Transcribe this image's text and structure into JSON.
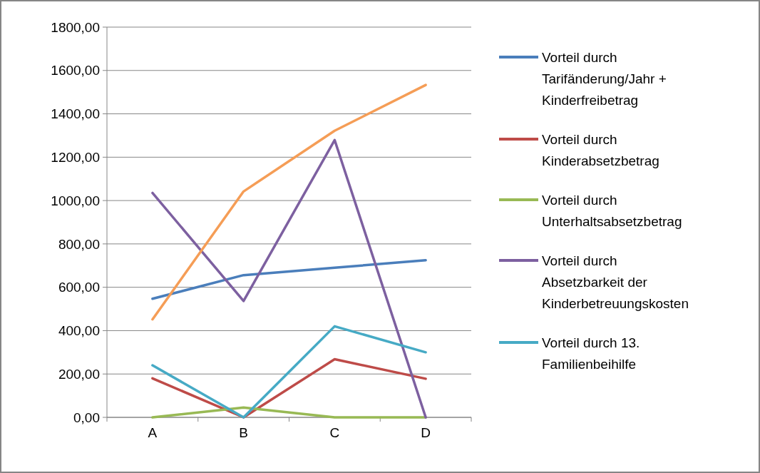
{
  "chart_data": {
    "type": "line",
    "categories": [
      "A",
      "B",
      "C",
      "D"
    ],
    "series": [
      {
        "name": "Vorteil durch Tarifänderung/Jahr + Kinderfreibetrag",
        "color": "#4a7ebb",
        "values": [
          547,
          656,
          690,
          725
        ]
      },
      {
        "name": "Vorteil durch Kinderabsetzbetrag",
        "color": "#be4b48",
        "values": [
          180,
          0,
          268,
          178
        ]
      },
      {
        "name": "Vorteil durch Unterhaltsabsetzbetrag",
        "color": "#98b954",
        "values": [
          0,
          45,
          0,
          0
        ]
      },
      {
        "name": "Vorteil durch Absetzbarkeit der Kinderbetreuungskosten",
        "color": "#7d60a0",
        "values": [
          1035,
          537,
          1279,
          0
        ]
      },
      {
        "name": "Vorteil durch 13. Familienbeihilfe",
        "color": "#46aac5",
        "values": [
          240,
          0,
          420,
          300
        ]
      },
      {
        "color": "#f59d56",
        "values": [
          452,
          1042,
          1322,
          1533
        ]
      }
    ],
    "ylim": [
      0,
      1800
    ],
    "yticks": [
      {
        "value": 0,
        "label": "0,00"
      },
      {
        "value": 200,
        "label": "200,00"
      },
      {
        "value": 400,
        "label": "400,00"
      },
      {
        "value": 600,
        "label": "600,00"
      },
      {
        "value": 800,
        "label": "800,00"
      },
      {
        "value": 1000,
        "label": "1000,00"
      },
      {
        "value": 1200,
        "label": "1200,00"
      },
      {
        "value": 1400,
        "label": "1400,00"
      },
      {
        "value": 1600,
        "label": "1600,00"
      },
      {
        "value": 1800,
        "label": "1800,00"
      }
    ],
    "grid": "y",
    "legend": "right",
    "marker": "none",
    "line_style": "solid"
  }
}
